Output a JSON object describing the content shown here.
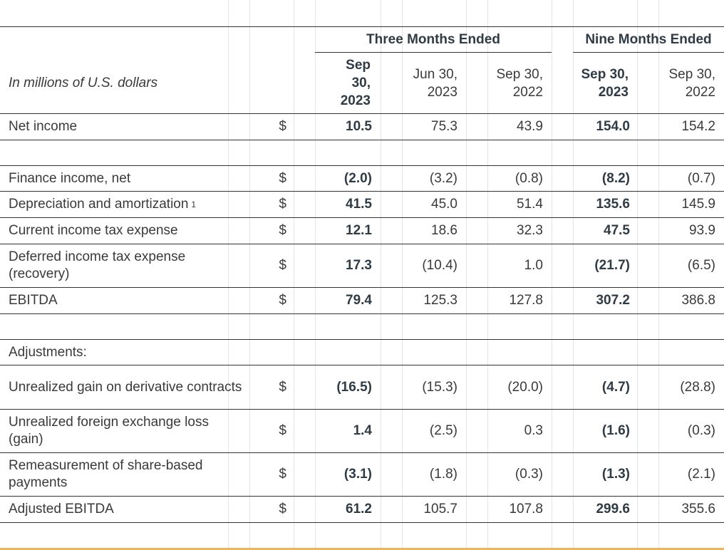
{
  "header": {
    "units_label": "In millions of U.S. dollars",
    "group_three": "Three Months Ended",
    "group_nine": "Nine Months Ended",
    "columns": [
      {
        "label": "Sep 30, 2023",
        "bold": true
      },
      {
        "label": "Jun 30, 2023",
        "bold": false
      },
      {
        "label": "Sep 30, 2022",
        "bold": false
      },
      {
        "label": "Sep 30, 2023",
        "bold": true
      },
      {
        "label": "Sep 30, 2022",
        "bold": false
      }
    ]
  },
  "rows": [
    {
      "label": "Net income",
      "currency": "$",
      "values": [
        "10.5",
        "75.3",
        "43.9",
        "154.0",
        "154.2"
      ]
    },
    {
      "label": "Finance income, net",
      "currency": "$",
      "values": [
        "(2.0)",
        "(3.2)",
        "(0.8)",
        "(8.2)",
        "(0.7)"
      ]
    },
    {
      "label": "Depreciation and amortization",
      "footnote": "1",
      "currency": "$",
      "values": [
        "41.5",
        "45.0",
        "51.4",
        "135.6",
        "145.9"
      ]
    },
    {
      "label": "Current income tax expense",
      "currency": "$",
      "values": [
        "12.1",
        "18.6",
        "32.3",
        "47.5",
        "93.9"
      ]
    },
    {
      "label": "Deferred income tax expense (recovery)",
      "currency": "$",
      "values": [
        "17.3",
        "(10.4)",
        "1.0",
        "(21.7)",
        "(6.5)"
      ]
    },
    {
      "label": "EBITDA",
      "currency": "$",
      "values": [
        "79.4",
        "125.3",
        "127.8",
        "307.2",
        "386.8"
      ]
    },
    {
      "label": "Adjustments:"
    },
    {
      "label": "Unrealized gain on derivative contracts",
      "currency": "$",
      "values": [
        "(16.5)",
        "(15.3)",
        "(20.0)",
        "(4.7)",
        "(28.8)"
      ]
    },
    {
      "label": "Unrealized foreign exchange loss (gain)",
      "currency": "$",
      "values": [
        "1.4",
        "(2.5)",
        "0.3",
        "(1.6)",
        "(0.3)"
      ]
    },
    {
      "label": "Remeasurement of share-based payments",
      "currency": "$",
      "values": [
        "(3.1)",
        "(1.8)",
        "(0.3)",
        "(1.3)",
        "(2.1)"
      ]
    },
    {
      "label": "Adjusted EBITDA",
      "currency": "$",
      "values": [
        "61.2",
        "105.7",
        "107.8",
        "299.6",
        "355.6"
      ]
    }
  ]
}
